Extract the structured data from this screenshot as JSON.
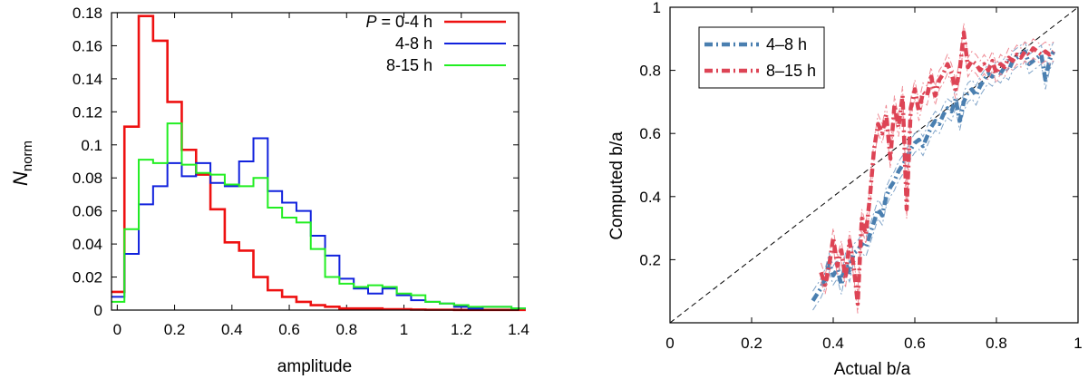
{
  "chart_data": [
    {
      "type": "step-histogram",
      "title": "",
      "xlabel": "amplitude",
      "ylabel_main": "N",
      "ylabel_sub": "norm",
      "xlim": [
        -0.02,
        1.4
      ],
      "ylim": [
        0,
        0.18
      ],
      "xticks": [
        0,
        0.2,
        0.4,
        0.6,
        0.8,
        1,
        1.2,
        1.4
      ],
      "xtick_labels": [
        "0",
        "0.2",
        "0.4",
        "0.6",
        "0.8",
        "1",
        "1.2",
        "1.4"
      ],
      "yticks": [
        0,
        0.02,
        0.04,
        0.06,
        0.08,
        0.1,
        0.12,
        0.14,
        0.16,
        0.18
      ],
      "ytick_labels": [
        "0",
        "0.02",
        "0.04",
        "0.06",
        "0.08",
        "0.1",
        "0.12",
        "0.14",
        "0.16",
        "0.18"
      ],
      "bin_width": 0.05,
      "bin_start": -0.025,
      "legend_position": "top-right",
      "series": [
        {
          "name": "P = 0-4 h",
          "label_italic": "P",
          "label_rest": " = 0-4 h",
          "color": "#ee1111",
          "values": [
            0.011,
            0.111,
            0.178,
            0.163,
            0.126,
            0.097,
            0.082,
            0.061,
            0.041,
            0.036,
            0.02,
            0.012,
            0.008,
            0.005,
            0.003,
            0.002,
            0.001,
            0.001,
            0.001,
            0.0005,
            0.0005,
            0.0003,
            0.0002,
            0.0002,
            0.0001,
            0.0001,
            0.0001,
            0.0001,
            0.0001
          ]
        },
        {
          "name": "4-8 h",
          "color": "#1122dd",
          "values": [
            0.008,
            0.034,
            0.064,
            0.075,
            0.089,
            0.081,
            0.089,
            0.077,
            0.075,
            0.09,
            0.104,
            0.072,
            0.065,
            0.06,
            0.045,
            0.033,
            0.019,
            0.013,
            0.01,
            0.013,
            0.009,
            0.006,
            0.005,
            0.004,
            0.002,
            0.001,
            0.002,
            0.002,
            0.001
          ]
        },
        {
          "name": "8-15 h",
          "color": "#22ee22",
          "values": [
            0.005,
            0.049,
            0.091,
            0.089,
            0.113,
            0.088,
            0.083,
            0.082,
            0.076,
            0.075,
            0.08,
            0.062,
            0.056,
            0.053,
            0.037,
            0.02,
            0.016,
            0.014,
            0.015,
            0.014,
            0.01,
            0.009,
            0.005,
            0.004,
            0.003,
            0.002,
            0.002,
            0.002,
            0.001
          ]
        }
      ]
    },
    {
      "type": "line",
      "title": "",
      "xlabel": "Actual b/a",
      "ylabel": "Computed b/a",
      "xlim": [
        0,
        1
      ],
      "ylim": [
        0,
        1
      ],
      "xticks": [
        0,
        0.2,
        0.4,
        0.6,
        0.8,
        1
      ],
      "xtick_labels": [
        "0",
        "0.2",
        "0.4",
        "0.6",
        "0.8",
        "1"
      ],
      "yticks": [
        0,
        0.2,
        0.4,
        0.6,
        0.8,
        1
      ],
      "ytick_labels": [
        "",
        "0.2",
        "0.4",
        "0.6",
        "0.8",
        "1"
      ],
      "reference_line": {
        "name": "y = x",
        "from": [
          0,
          0
        ],
        "to": [
          1,
          1
        ],
        "color": "#000000"
      },
      "legend_position": "top-left",
      "series": [
        {
          "name": "4–8 h",
          "color": "#4a7fb0",
          "band_color": "#7fa3c8",
          "x": [
            0.35,
            0.36,
            0.37,
            0.38,
            0.39,
            0.4,
            0.41,
            0.42,
            0.43,
            0.44,
            0.45,
            0.46,
            0.47,
            0.48,
            0.49,
            0.5,
            0.51,
            0.52,
            0.53,
            0.54,
            0.55,
            0.56,
            0.57,
            0.58,
            0.59,
            0.6,
            0.61,
            0.62,
            0.63,
            0.64,
            0.65,
            0.66,
            0.67,
            0.68,
            0.69,
            0.7,
            0.71,
            0.72,
            0.73,
            0.74,
            0.75,
            0.76,
            0.77,
            0.78,
            0.79,
            0.8,
            0.81,
            0.82,
            0.83,
            0.84,
            0.85,
            0.86,
            0.87,
            0.88,
            0.89,
            0.9,
            0.91,
            0.92,
            0.93,
            0.94
          ],
          "y": [
            0.07,
            0.09,
            0.11,
            0.14,
            0.19,
            0.15,
            0.17,
            0.12,
            0.19,
            0.16,
            0.22,
            0.23,
            0.25,
            0.24,
            0.28,
            0.32,
            0.36,
            0.34,
            0.4,
            0.43,
            0.45,
            0.48,
            0.5,
            0.52,
            0.55,
            0.57,
            0.58,
            0.56,
            0.59,
            0.62,
            0.64,
            0.63,
            0.66,
            0.68,
            0.67,
            0.71,
            0.64,
            0.7,
            0.73,
            0.74,
            0.72,
            0.75,
            0.77,
            0.79,
            0.78,
            0.8,
            0.79,
            0.81,
            0.8,
            0.83,
            0.84,
            0.85,
            0.86,
            0.82,
            0.83,
            0.84,
            0.85,
            0.77,
            0.83,
            0.86
          ]
        },
        {
          "name": "8–15 h",
          "color": "#dd4455",
          "band_color": "#ef8a94",
          "x": [
            0.37,
            0.38,
            0.39,
            0.4,
            0.41,
            0.42,
            0.43,
            0.44,
            0.45,
            0.46,
            0.47,
            0.48,
            0.49,
            0.5,
            0.51,
            0.52,
            0.53,
            0.54,
            0.55,
            0.56,
            0.57,
            0.58,
            0.59,
            0.6,
            0.61,
            0.62,
            0.63,
            0.64,
            0.65,
            0.66,
            0.67,
            0.68,
            0.69,
            0.7,
            0.71,
            0.72,
            0.73,
            0.74,
            0.75,
            0.76,
            0.77,
            0.78,
            0.79,
            0.8,
            0.81,
            0.82,
            0.83,
            0.84,
            0.85,
            0.86,
            0.87,
            0.88,
            0.89,
            0.9,
            0.91,
            0.92,
            0.93,
            0.94
          ],
          "y": [
            0.16,
            0.12,
            0.18,
            0.27,
            0.18,
            0.23,
            0.14,
            0.26,
            0.18,
            0.06,
            0.33,
            0.28,
            0.4,
            0.55,
            0.63,
            0.6,
            0.66,
            0.52,
            0.69,
            0.62,
            0.72,
            0.36,
            0.68,
            0.74,
            0.67,
            0.73,
            0.72,
            0.78,
            0.72,
            0.77,
            0.79,
            0.82,
            0.79,
            0.74,
            0.8,
            0.92,
            0.81,
            0.83,
            0.82,
            0.8,
            0.82,
            0.8,
            0.83,
            0.79,
            0.82,
            0.81,
            0.84,
            0.83,
            0.85,
            0.84,
            0.86,
            0.85,
            0.87,
            0.86,
            0.85,
            0.86,
            0.85,
            0.86
          ]
        }
      ]
    }
  ]
}
